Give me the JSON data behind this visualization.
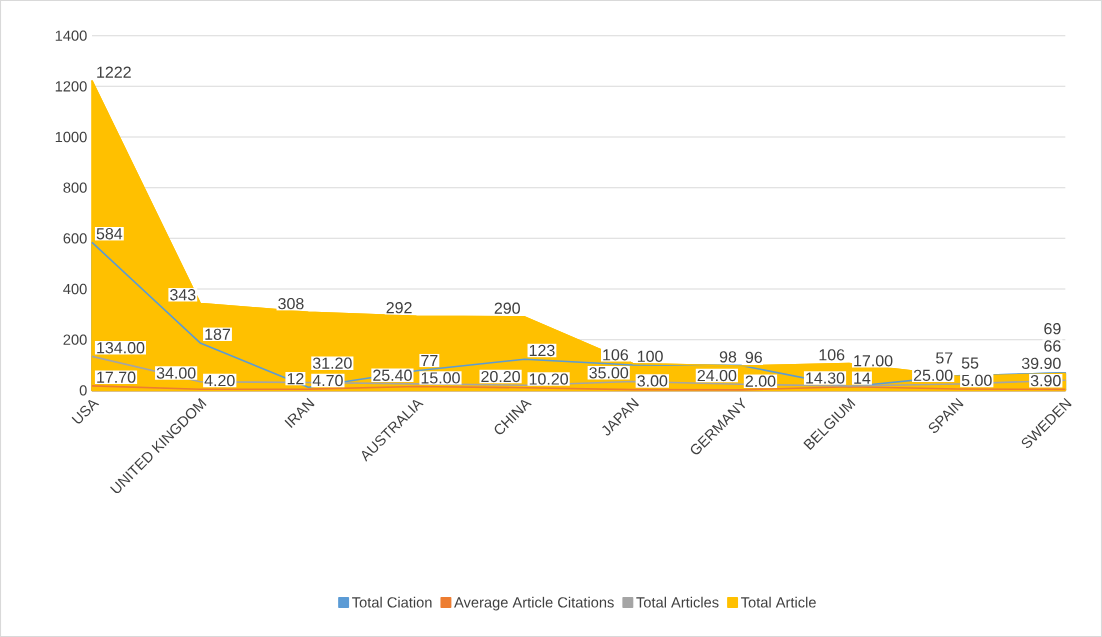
{
  "chart_data": {
    "type": "area",
    "categories": [
      "USA",
      "UNITED KINGDOM",
      "IRAN",
      "AUSTRALIA",
      "CHINA",
      "JAPAN",
      "GERMANY",
      "BELGIUM",
      "SPAIN",
      "SWEDEN"
    ],
    "series": [
      {
        "name": "Total Ciation",
        "color": "#5b9bd5",
        "values": [
          584,
          187,
          12,
          77,
          123,
          100,
          98,
          14,
          57,
          69
        ],
        "value_labels": [
          "584",
          "187",
          "12",
          "77",
          "123",
          "100",
          "98",
          "14",
          "57",
          "69"
        ]
      },
      {
        "name": "Average Article Citations",
        "color": "#ed7d31",
        "values": [
          17.7,
          4.2,
          4.7,
          15.0,
          10.2,
          3.0,
          2.0,
          14.3,
          5.0,
          3.9
        ],
        "value_labels": [
          "17.70",
          "4.20",
          "4.70",
          "15.00",
          "10.20",
          "3.00",
          "2.00",
          "14.30",
          "5.00",
          "3.90"
        ]
      },
      {
        "name": "Total Articles",
        "color": "#a5a5a5",
        "values": [
          134.0,
          34.0,
          31.2,
          25.4,
          20.2,
          35.0,
          24.0,
          17.0,
          25.0,
          39.9
        ],
        "value_labels": [
          "134.00",
          "34.00",
          "31.20",
          "25.40",
          "20.20",
          "35.00",
          "24.00",
          "17.00",
          "25.00",
          "39.90"
        ]
      },
      {
        "name": "Total Article",
        "color": "#ffc000",
        "values": [
          1222,
          343,
          308,
          292,
          290,
          106,
          96,
          106,
          55,
          66
        ],
        "value_labels": [
          "1222",
          "343",
          "308",
          "292",
          "290",
          "106",
          "96",
          "106",
          "55",
          "66"
        ]
      }
    ],
    "ylim": [
      0,
      1400
    ],
    "yticks": [
      0,
      200,
      400,
      600,
      800,
      1000,
      1200,
      1400
    ],
    "grid": "y",
    "legend": "bottom"
  }
}
